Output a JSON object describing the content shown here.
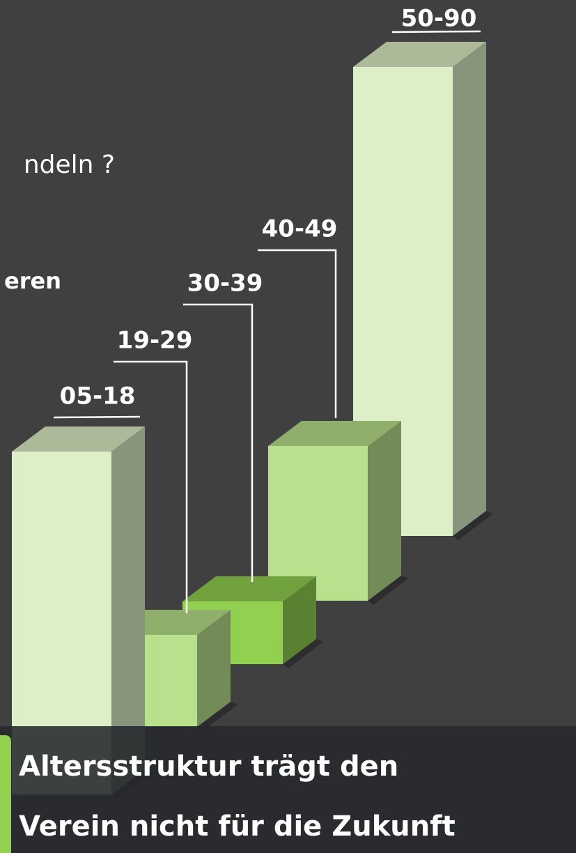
{
  "texts": {
    "partial_line_1": "ndeln ?",
    "partial_line_2": "eren"
  },
  "chart_data": {
    "type": "bar",
    "categories": [
      "05-18",
      "19-29",
      "30-39",
      "40-49",
      "50-90"
    ],
    "values": [
      492,
      132,
      90,
      222,
      673
    ],
    "colors": [
      "#dcefc6",
      "#b9e08c",
      "#92d050",
      "#b9e08c",
      "#dcefc6"
    ]
  },
  "banner": {
    "lines": [
      "Altersstruktur trägt den",
      "Verein nicht für die Zukunft"
    ]
  }
}
